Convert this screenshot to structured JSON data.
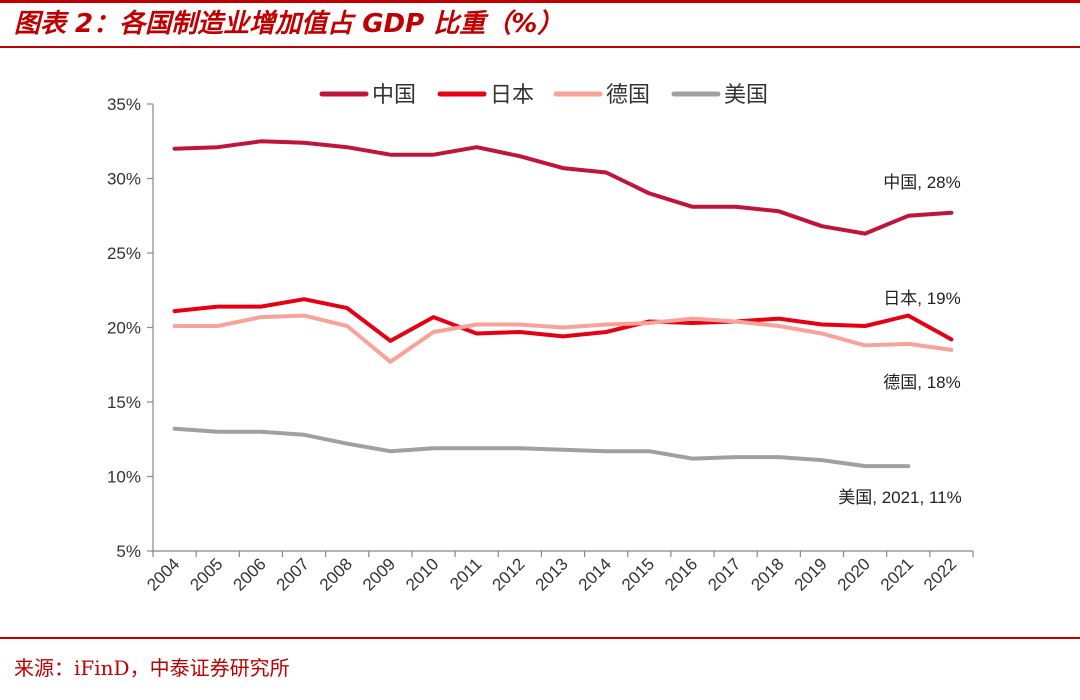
{
  "header": {
    "title": "图表 2：各国制造业增加值占 GDP 比重（%）"
  },
  "footer": {
    "source": "来源：iFinD，中泰证券研究所"
  },
  "colors": {
    "accent": "#c00000"
  },
  "chart_data": {
    "type": "line",
    "title": "各国制造业增加值占 GDP 比重（%）",
    "xlabel": "",
    "ylabel": "",
    "ylim": [
      5,
      35
    ],
    "yticks": [
      5,
      10,
      15,
      20,
      25,
      30,
      35
    ],
    "ytick_labels": [
      "5%",
      "10%",
      "15%",
      "20%",
      "25%",
      "30%",
      "35%"
    ],
    "grid": false,
    "legend_position": "top-center",
    "categories": [
      "2004",
      "2005",
      "2006",
      "2007",
      "2008",
      "2009",
      "2010",
      "2011",
      "2012",
      "2013",
      "2014",
      "2015",
      "2016",
      "2017",
      "2018",
      "2019",
      "2020",
      "2021",
      "2022"
    ],
    "series": [
      {
        "name": "中国",
        "color": "#c0143c",
        "values": [
          32.0,
          32.1,
          32.5,
          32.4,
          32.1,
          31.6,
          31.6,
          32.1,
          31.5,
          30.7,
          30.4,
          29.0,
          28.1,
          28.1,
          27.8,
          26.8,
          26.3,
          27.5,
          27.7
        ],
        "label": "中国, 28%"
      },
      {
        "name": "日本",
        "color": "#e60012",
        "values": [
          21.1,
          21.4,
          21.4,
          21.9,
          21.3,
          19.1,
          20.7,
          19.6,
          19.7,
          19.4,
          19.7,
          20.4,
          20.3,
          20.4,
          20.6,
          20.2,
          20.1,
          20.8,
          19.2
        ],
        "label": "日本, 19%"
      },
      {
        "name": "德国",
        "color": "#f7a39a",
        "values": [
          20.1,
          20.1,
          20.7,
          20.8,
          20.1,
          17.7,
          19.7,
          20.2,
          20.2,
          20.0,
          20.2,
          20.3,
          20.6,
          20.4,
          20.1,
          19.6,
          18.8,
          18.9,
          18.5
        ],
        "label": "德国, 18%"
      },
      {
        "name": "美国",
        "color": "#a0a0a0",
        "values": [
          13.2,
          13.0,
          13.0,
          12.8,
          12.2,
          11.7,
          11.9,
          11.9,
          11.9,
          11.8,
          11.7,
          11.7,
          11.2,
          11.3,
          11.3,
          11.1,
          10.7,
          10.7,
          null
        ],
        "label": "美国, 2021, 11%"
      }
    ]
  }
}
